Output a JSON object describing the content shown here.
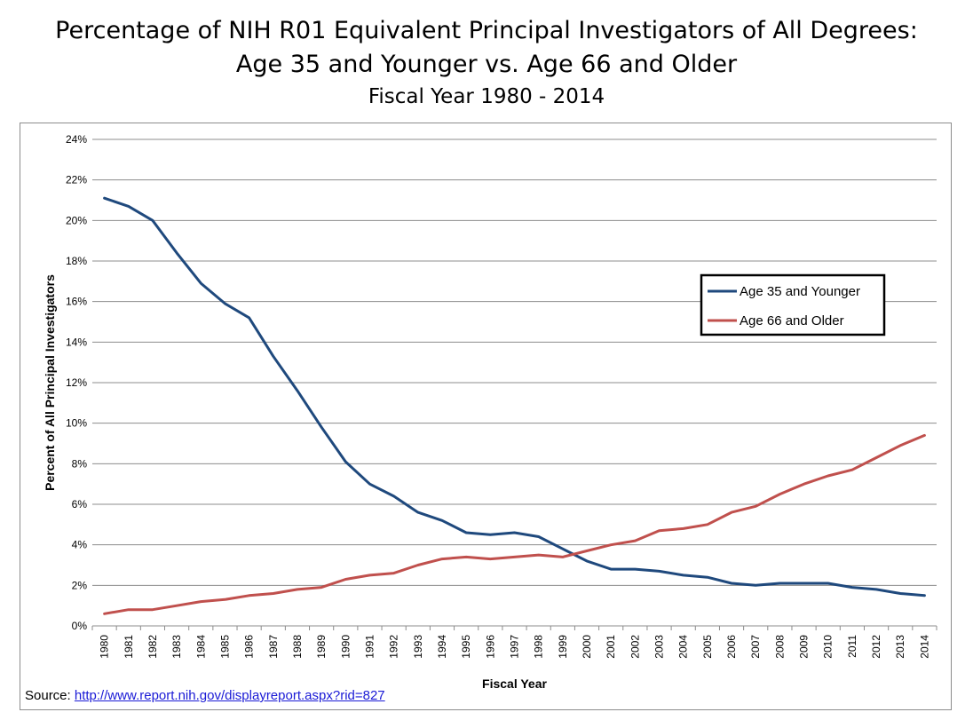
{
  "title": {
    "line1": "Percentage of NIH R01 Equivalent Principal Investigators of All Degrees:",
    "line2": "Age 35 and Younger vs. Age 66 and Older",
    "line3": "Fiscal Year 1980 - 2014"
  },
  "source": {
    "label": "Source: ",
    "link": "http://www.report.nih.gov/displayreport.aspx?rid=827"
  },
  "chart_data": {
    "type": "line",
    "xlabel": "Fiscal Year",
    "ylabel": "Percent of All Principal Investigators",
    "ylim": [
      0,
      24
    ],
    "y_ticks": [
      "0%",
      "2%",
      "4%",
      "6%",
      "8%",
      "10%",
      "12%",
      "14%",
      "16%",
      "18%",
      "20%",
      "22%",
      "24%"
    ],
    "grid": true,
    "legend_position": "right",
    "categories": [
      "1980",
      "1981",
      "1982",
      "1983",
      "1984",
      "1985",
      "1986",
      "1987",
      "1988",
      "1989",
      "1990",
      "1991",
      "1992",
      "1993",
      "1994",
      "1995",
      "1996",
      "1997",
      "1998",
      "1999",
      "2000",
      "2001",
      "2002",
      "2003",
      "2004",
      "2005",
      "2006",
      "2007",
      "2008",
      "2009",
      "2010",
      "2011",
      "2012",
      "2013",
      "2014"
    ],
    "series": [
      {
        "name": "Age 35 and Younger",
        "color": "#1f497d",
        "values": [
          21.1,
          20.7,
          20.0,
          18.4,
          16.9,
          15.9,
          15.2,
          13.3,
          11.6,
          9.8,
          8.1,
          7.0,
          6.4,
          5.6,
          5.2,
          4.6,
          4.5,
          4.6,
          4.4,
          3.8,
          3.2,
          2.8,
          2.8,
          2.7,
          2.5,
          2.4,
          2.1,
          2.0,
          2.1,
          2.1,
          2.1,
          1.9,
          1.8,
          1.6,
          1.5
        ]
      },
      {
        "name": "Age 66 and Older",
        "color": "#c0504d",
        "values": [
          0.6,
          0.8,
          0.8,
          1.0,
          1.2,
          1.3,
          1.5,
          1.6,
          1.8,
          1.9,
          2.3,
          2.5,
          2.6,
          3.0,
          3.3,
          3.4,
          3.3,
          3.4,
          3.5,
          3.4,
          3.7,
          4.0,
          4.2,
          4.7,
          4.8,
          5.0,
          5.6,
          5.9,
          6.5,
          7.0,
          7.4,
          7.7,
          8.3,
          8.9,
          9.4
        ]
      }
    ]
  }
}
